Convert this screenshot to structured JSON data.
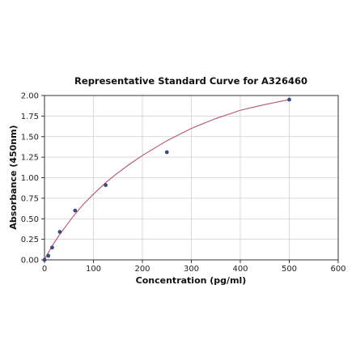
{
  "chart_data": {
    "type": "scatter",
    "title": "Representative Standard Curve for A326460",
    "xlabel": "Concentration (pg/ml)",
    "ylabel": "Absorbance (450nm)",
    "xlim": [
      0,
      600
    ],
    "ylim": [
      0,
      2.0
    ],
    "xticks": [
      "0",
      "100",
      "200",
      "300",
      "400",
      "500",
      "600"
    ],
    "yticks": [
      "0.00",
      "0.25",
      "0.50",
      "0.75",
      "1.00",
      "1.25",
      "1.50",
      "1.75",
      "2.00"
    ],
    "grid": true,
    "series": [
      {
        "x": [
          0,
          7.8,
          15.6,
          31.25,
          62.5,
          125,
          250,
          500
        ],
        "y": [
          0.0,
          0.05,
          0.15,
          0.34,
          0.6,
          0.91,
          1.31,
          1.95
        ]
      }
    ],
    "fit_curve": {
      "x": [
        0,
        5,
        10,
        20,
        30,
        40,
        60,
        80,
        100,
        125,
        150,
        175,
        200,
        250,
        300,
        350,
        400,
        450,
        500
      ],
      "y": [
        0.0,
        0.06,
        0.11,
        0.21,
        0.3,
        0.38,
        0.54,
        0.68,
        0.8,
        0.94,
        1.06,
        1.17,
        1.27,
        1.45,
        1.6,
        1.72,
        1.82,
        1.89,
        1.95
      ]
    },
    "colors": {
      "points": "#3b4a78",
      "curve": "#b5566e"
    }
  }
}
